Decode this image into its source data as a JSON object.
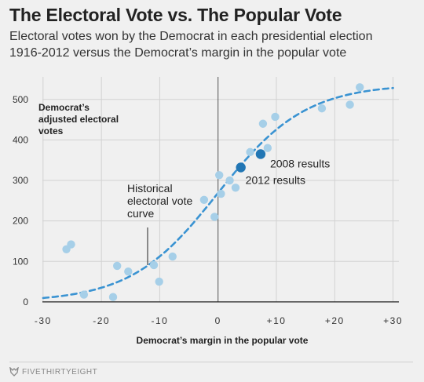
{
  "header": {
    "title": "The Electoral Vote vs. The Popular Vote",
    "subtitle_line1": "Electoral votes won by the Democrat in each presidential election",
    "subtitle_line2": "1916-2012 versus the Democrat’s margin in the popular vote"
  },
  "footer": {
    "brand": "FIVETHIRTYEIGHT",
    "brand_icon": "fivethirtyeight-fox-icon"
  },
  "chart_data": {
    "type": "scatter",
    "title": "The Electoral Vote vs. The Popular Vote",
    "subtitle": "Electoral votes won by the Democrat in each presidential election 1916-2012 versus the Democrat’s margin in the popular vote",
    "xlabel": "Democrat’s margin in the popular vote",
    "ylabel_lines": [
      "Democrat’s",
      "adjusted electoral",
      "votes"
    ],
    "xlim": [
      -32,
      31
    ],
    "ylim": [
      -8,
      548
    ],
    "x_ticks": [
      -30,
      -20,
      -10,
      0,
      10,
      20,
      30
    ],
    "x_tick_labels": [
      "-30",
      "-20",
      "-10",
      "0",
      "+10",
      "+20",
      "+30"
    ],
    "y_ticks": [
      0,
      100,
      200,
      300,
      400,
      500
    ],
    "y_tick_labels": [
      "0",
      "100",
      "200",
      "300",
      "400",
      "500"
    ],
    "grid": true,
    "colors": {
      "point": "#a6cfe8",
      "highlight": "#2176b4",
      "curve": "#3a93d2",
      "grid": "#d2d2d2",
      "zero_line": "#555555",
      "text": "#222222"
    },
    "points": [
      {
        "x": -26,
        "y": 130
      },
      {
        "x": -25.2,
        "y": 142
      },
      {
        "x": -23,
        "y": 18
      },
      {
        "x": -18,
        "y": 12
      },
      {
        "x": -17.3,
        "y": 89
      },
      {
        "x": -15.4,
        "y": 75
      },
      {
        "x": -11,
        "y": 91
      },
      {
        "x": -10.1,
        "y": 50
      },
      {
        "x": -7.8,
        "y": 112
      },
      {
        "x": -2.4,
        "y": 252
      },
      {
        "x": -0.6,
        "y": 210
      },
      {
        "x": 0.2,
        "y": 313
      },
      {
        "x": 0.5,
        "y": 267
      },
      {
        "x": 2,
        "y": 300
      },
      {
        "x": 3,
        "y": 282
      },
      {
        "x": 3.9,
        "y": 332
      },
      {
        "x": 5.5,
        "y": 370
      },
      {
        "x": 7.7,
        "y": 440
      },
      {
        "x": 8.5,
        "y": 380
      },
      {
        "x": 9.8,
        "y": 457
      },
      {
        "x": 17.8,
        "y": 478
      },
      {
        "x": 22.6,
        "y": 487
      },
      {
        "x": 24.3,
        "y": 530
      }
    ],
    "highlighted": [
      {
        "x": 7.3,
        "y": 365,
        "label": "2008 results"
      },
      {
        "x": 3.9,
        "y": 332,
        "label": "2012 results"
      }
    ],
    "curve": {
      "name": "Historical electoral vote curve",
      "label_lines": [
        "Historical",
        "electoral vote",
        "curve"
      ],
      "midpoint": 0,
      "min": 0,
      "max": 538,
      "scale": 7.5,
      "x_range": [
        -30,
        30
      ]
    }
  }
}
